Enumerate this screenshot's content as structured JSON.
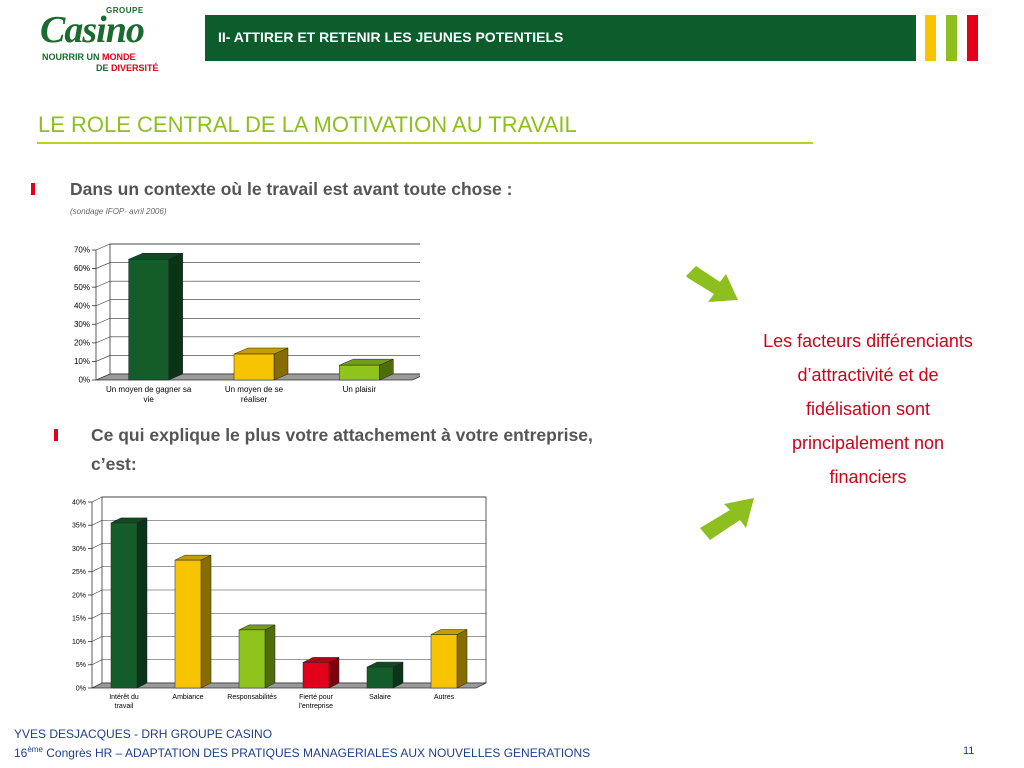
{
  "logo": {
    "groupe": "GROUPE",
    "brand": "Casino",
    "tagline_1a": "NOURRIR UN ",
    "tagline_1b": "MONDE",
    "tagline_2a": "DE ",
    "tagline_2b": "DIVERSITÉ"
  },
  "header": {
    "title": "II- ATTIRER ET RETENIR LES JEUNES POTENTIELS"
  },
  "slide": {
    "title": "LE ROLE CENTRAL DE LA MOTIVATION AU TRAVAIL"
  },
  "bullets": {
    "b1": "Dans un contexte où le travail est avant toute chose :",
    "b1_note": "(sondage IFOP- avril 2006)",
    "b2_line1": "Ce qui explique le plus votre attachement à votre entreprise,",
    "b2_line2": "c’est:"
  },
  "callout": {
    "lines": [
      "Les facteurs différenciants",
      "d’attractivité et de",
      "fidélisation sont",
      "principalement non",
      "financiers"
    ]
  },
  "footer": {
    "line1": "YVES DESJACQUES - DRH GROUPE CASINO",
    "line2_num": "16",
    "line2_sup": "ème",
    "line2_rest": " Congrès HR – ADAPTATION DES PRATIQUES MANAGERIALES AUX NOUVELLES GENERATIONS",
    "page": "11"
  },
  "colors": {
    "dark_green": "#0d5c2c",
    "light_green": "#8dbf1e",
    "yellow": "#f6c400",
    "red": "#e2001a",
    "text_blue": "#1f3e8a"
  },
  "chart_data": [
    {
      "type": "bar",
      "categories": [
        "Un moyen de gagner sa vie",
        "Un moyen de se réaliser",
        "Un plaisir"
      ],
      "values": [
        65,
        14,
        8
      ],
      "colors": [
        "#145c2a",
        "#f6c400",
        "#8fc41c"
      ],
      "yticks": [
        "0%",
        "10%",
        "20%",
        "30%",
        "40%",
        "50%",
        "60%",
        "70%"
      ],
      "ylim": [
        0,
        70
      ],
      "grid": true
    },
    {
      "type": "bar",
      "categories": [
        "Intérêt du travail",
        "Ambiance",
        "Responsabilités",
        "Fierté pour l'entreprise",
        "Salaire",
        "Autres"
      ],
      "values": [
        35.5,
        27.5,
        12.5,
        5.5,
        4.5,
        11.5
      ],
      "colors": [
        "#145c2a",
        "#f6c400",
        "#8fc41c",
        "#e2001a",
        "#145c2a",
        "#f6c400"
      ],
      "yticks": [
        "0%",
        "5%",
        "10%",
        "15%",
        "20%",
        "25%",
        "30%",
        "35%",
        "40%"
      ],
      "ylim": [
        0,
        40
      ],
      "grid": true
    }
  ]
}
